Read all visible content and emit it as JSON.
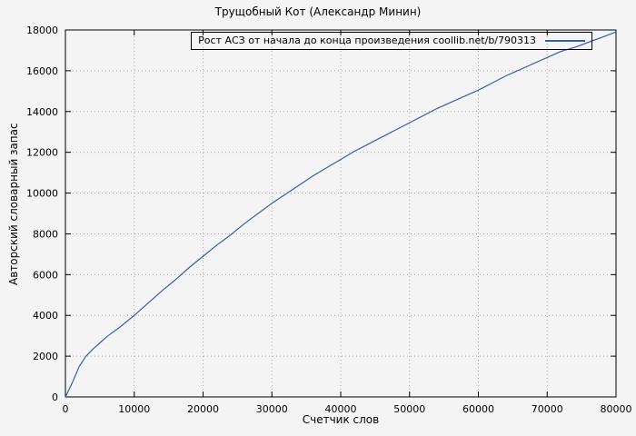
{
  "chart_data": {
    "type": "line",
    "title": "Трущобный Кот (Александр Минин)",
    "xlabel": "Счетчик слов",
    "ylabel": "Авторский словарный запас",
    "xlim": [
      0,
      80000
    ],
    "ylim": [
      0,
      18000
    ],
    "xticks": [
      0,
      10000,
      20000,
      30000,
      40000,
      50000,
      60000,
      70000,
      80000
    ],
    "yticks": [
      0,
      2000,
      4000,
      6000,
      8000,
      10000,
      12000,
      14000,
      16000,
      18000
    ],
    "grid": true,
    "legend_position": "top-right",
    "series": [
      {
        "name": "Рост АСЗ от начала до конца произведения coollib.net/b/790313",
        "color": "#3a5da8",
        "x": [
          0,
          500,
          1000,
          1500,
          2000,
          3000,
          4000,
          5000,
          6000,
          7000,
          8000,
          10000,
          12000,
          14000,
          16000,
          18000,
          20000,
          22000,
          24000,
          26000,
          28000,
          30000,
          32000,
          34000,
          36000,
          38000,
          40000,
          42000,
          44000,
          46000,
          48000,
          50000,
          52000,
          54000,
          56000,
          58000,
          60000,
          62000,
          64000,
          66000,
          68000,
          70000,
          72000,
          74000,
          76000,
          78000,
          80000
        ],
        "y": [
          0,
          350,
          700,
          1100,
          1500,
          2000,
          2350,
          2650,
          2950,
          3200,
          3450,
          4000,
          4600,
          5200,
          5750,
          6350,
          6900,
          7450,
          7950,
          8500,
          9000,
          9500,
          9950,
          10400,
          10850,
          11250,
          11650,
          12050,
          12400,
          12750,
          13100,
          13450,
          13800,
          14150,
          14450,
          14750,
          15050,
          15400,
          15750,
          16050,
          16350,
          16650,
          16950,
          17150,
          17400,
          17650,
          17900
        ]
      }
    ]
  }
}
